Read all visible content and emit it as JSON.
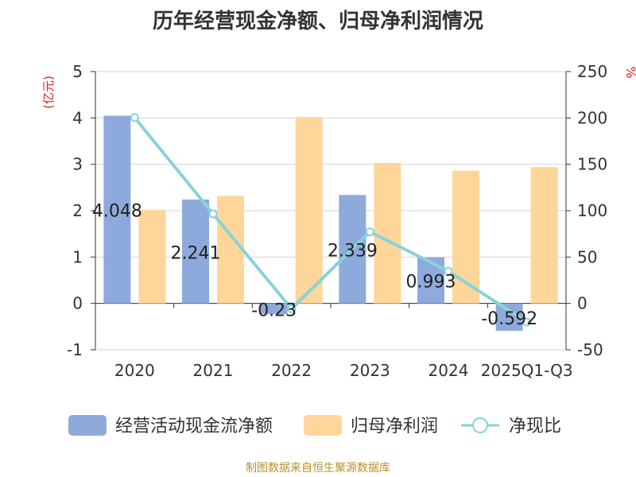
{
  "chart_data": {
    "type": "bar",
    "title": "历年经营现金净额、归母净利润情况",
    "categories": [
      "2020",
      "2021",
      "2022",
      "2023",
      "2024",
      "2025Q1-Q3"
    ],
    "y_left_unit": "(亿元)",
    "y_right_unit": "%",
    "ylim_left": [
      -1,
      5
    ],
    "ylim_right": [
      -50,
      250
    ],
    "y_left_ticks": [
      "-1",
      "0",
      "1",
      "2",
      "3",
      "4",
      "5"
    ],
    "y_right_ticks": [
      "-50",
      "0",
      "50",
      "100",
      "150",
      "200",
      "250"
    ],
    "grid": true,
    "legend_position": "bottom",
    "series": [
      {
        "name": "经营活动现金流净额",
        "type": "bar",
        "axis": "left",
        "color": "#8eaadc",
        "values": [
          4.048,
          2.241,
          -0.23,
          2.339,
          0.993,
          -0.592
        ],
        "labels": [
          "4.048",
          "2.241",
          "-0.23",
          "2.339",
          "0.993",
          "-0.592"
        ]
      },
      {
        "name": "归母净利润",
        "type": "bar",
        "axis": "left",
        "color": "#ffd699",
        "values": [
          2.02,
          2.32,
          4.02,
          3.03,
          2.86,
          2.94
        ]
      },
      {
        "name": "净现比",
        "type": "line",
        "axis": "right",
        "color": "#88d2d9",
        "values": [
          200.4,
          96.6,
          -5.7,
          77.2,
          34.7,
          -20.1
        ]
      }
    ]
  },
  "source": "制图数据来自恒生聚源数据库"
}
